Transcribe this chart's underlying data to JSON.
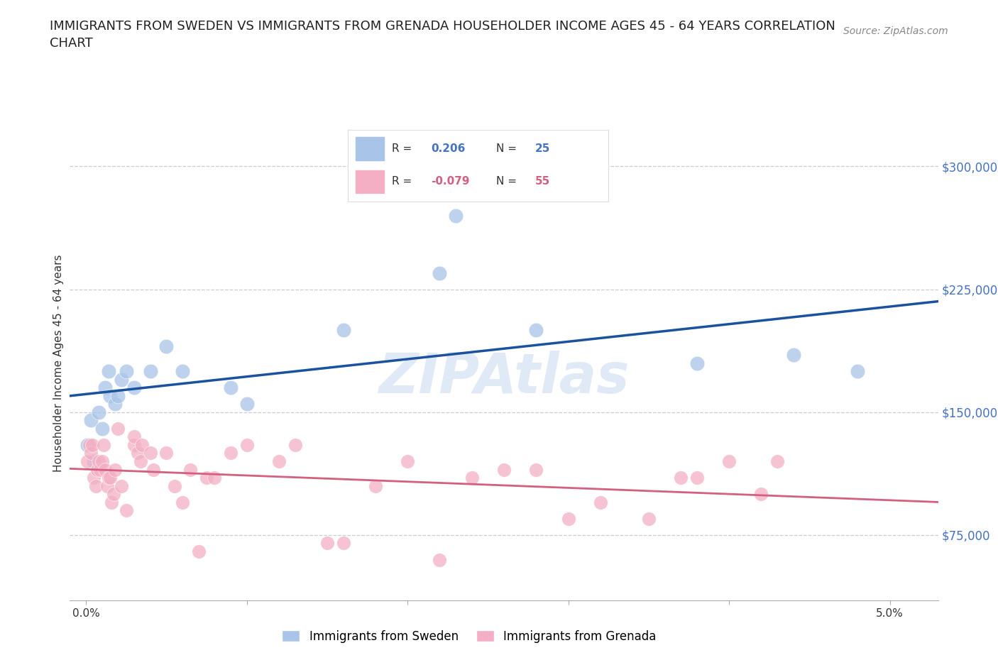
{
  "title": "IMMIGRANTS FROM SWEDEN VS IMMIGRANTS FROM GRENADA HOUSEHOLDER INCOME AGES 45 - 64 YEARS CORRELATION\nCHART",
  "source": "Source: ZipAtlas.com",
  "ylabel": "Householder Income Ages 45 - 64 years",
  "xlim": [
    -0.001,
    0.053
  ],
  "ylim": [
    35000,
    325000
  ],
  "yticks": [
    75000,
    150000,
    225000,
    300000
  ],
  "ytick_labels": [
    "$75,000",
    "$150,000",
    "$225,000",
    "$300,000"
  ],
  "xticks": [
    0.0,
    0.01,
    0.02,
    0.03,
    0.04,
    0.05
  ],
  "xtick_labels": [
    "0.0%",
    "",
    "",
    "",
    "",
    "5.0%"
  ],
  "watermark": "ZIPAtlas",
  "sweden_color": "#a8c4e8",
  "grenada_color": "#f4afc4",
  "sweden_line_color": "#1a52a0",
  "grenada_line_color": "#d46080",
  "sweden_R": 0.206,
  "sweden_N": 25,
  "grenada_R": -0.079,
  "grenada_N": 55,
  "sweden_x": [
    0.0001,
    0.0003,
    0.0005,
    0.0008,
    0.001,
    0.0012,
    0.0014,
    0.0015,
    0.0018,
    0.002,
    0.0022,
    0.0025,
    0.003,
    0.004,
    0.005,
    0.006,
    0.009,
    0.01,
    0.016,
    0.022,
    0.023,
    0.028,
    0.038,
    0.044,
    0.048
  ],
  "sweden_y": [
    130000,
    145000,
    120000,
    150000,
    140000,
    165000,
    175000,
    160000,
    155000,
    160000,
    170000,
    175000,
    165000,
    175000,
    190000,
    175000,
    165000,
    155000,
    200000,
    235000,
    270000,
    200000,
    180000,
    185000,
    175000
  ],
  "grenada_x": [
    0.0001,
    0.0002,
    0.0003,
    0.0004,
    0.0005,
    0.0006,
    0.0007,
    0.0008,
    0.0009,
    0.001,
    0.0011,
    0.0012,
    0.0013,
    0.0014,
    0.0015,
    0.0016,
    0.0017,
    0.0018,
    0.002,
    0.0022,
    0.0025,
    0.003,
    0.003,
    0.0032,
    0.0034,
    0.0035,
    0.004,
    0.0042,
    0.005,
    0.0055,
    0.006,
    0.0065,
    0.007,
    0.0075,
    0.008,
    0.009,
    0.01,
    0.012,
    0.013,
    0.015,
    0.016,
    0.018,
    0.02,
    0.022,
    0.024,
    0.026,
    0.028,
    0.03,
    0.032,
    0.035,
    0.037,
    0.038,
    0.04,
    0.042,
    0.043
  ],
  "grenada_y": [
    120000,
    130000,
    125000,
    130000,
    110000,
    105000,
    115000,
    120000,
    115000,
    120000,
    130000,
    115000,
    105000,
    110000,
    110000,
    95000,
    100000,
    115000,
    140000,
    105000,
    90000,
    130000,
    135000,
    125000,
    120000,
    130000,
    125000,
    115000,
    125000,
    105000,
    95000,
    115000,
    65000,
    110000,
    110000,
    125000,
    130000,
    120000,
    130000,
    70000,
    70000,
    105000,
    120000,
    60000,
    110000,
    115000,
    115000,
    85000,
    95000,
    85000,
    110000,
    110000,
    120000,
    100000,
    120000
  ]
}
